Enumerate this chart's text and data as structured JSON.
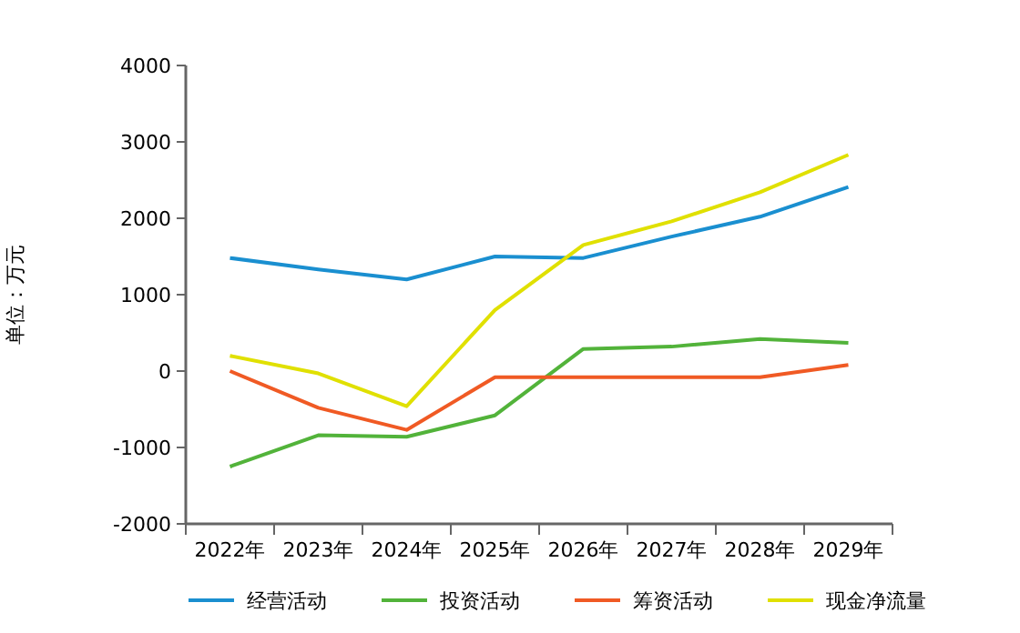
{
  "chart_data": {
    "type": "line",
    "ylabel": "单位：万元",
    "categories": [
      "2022年",
      "2023年",
      "2024年",
      "2025年",
      "2026年",
      "2027年",
      "2028年",
      "2029年"
    ],
    "ylim": [
      -2000,
      4000
    ],
    "yticks": [
      -2000,
      -1000,
      0,
      1000,
      2000,
      3000,
      4000
    ],
    "grid": false,
    "legend": "bottom",
    "marker": "none",
    "line_style": "solid",
    "series": [
      {
        "name": "经营活动",
        "color": "#1a8fd0",
        "values": [
          1480,
          1330,
          1200,
          1500,
          1480,
          1760,
          2020,
          2410
        ]
      },
      {
        "name": "投资活动",
        "color": "#52b33a",
        "values": [
          -1250,
          -840,
          -860,
          -580,
          290,
          320,
          420,
          370
        ]
      },
      {
        "name": "筹资活动",
        "color": "#f05a24",
        "values": [
          0,
          -480,
          -770,
          -80,
          -80,
          -80,
          -80,
          80
        ]
      },
      {
        "name": "现金净流量",
        "color": "#e0e000",
        "values": [
          200,
          -30,
          -460,
          800,
          1650,
          1960,
          2340,
          2830
        ]
      }
    ]
  }
}
